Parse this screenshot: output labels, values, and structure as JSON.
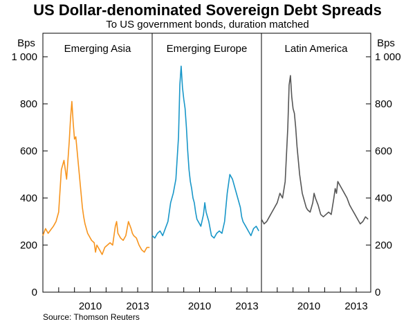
{
  "chart_data": {
    "type": "line",
    "title": "US Dollar-denominated Sovereign Debt Spreads",
    "subtitle": "To US government bonds, duration matched",
    "ylabel_left": "Bps",
    "ylabel_right": "Bps",
    "ylim": [
      0,
      1100
    ],
    "y_ticks": [
      "0",
      "200",
      "400",
      "600",
      "800",
      "1 000"
    ],
    "x_tick_labels": [
      "2010",
      "2013"
    ],
    "grid": false,
    "source": "Source: Thomson Reuters",
    "panels": [
      {
        "title": "Emerging Asia",
        "color": "#f7941d",
        "x_range": [
          "2007-01",
          "2013-12"
        ],
        "x_ticks": [
          "2008",
          "2009",
          "2010",
          "2011",
          "2012",
          "2013"
        ],
        "x_tick_labels": [
          "",
          "",
          "2010",
          "",
          "",
          "2013"
        ],
        "series": {
          "x": [
            "2007-01",
            "2007-03",
            "2007-05",
            "2007-07",
            "2007-09",
            "2007-11",
            "2008-01",
            "2008-03",
            "2008-05",
            "2008-07",
            "2008-09",
            "2008-10",
            "2008-11",
            "2008-12",
            "2009-01",
            "2009-02",
            "2009-03",
            "2009-04",
            "2009-05",
            "2009-06",
            "2009-07",
            "2009-08",
            "2009-09",
            "2009-10",
            "2009-11",
            "2009-12",
            "2010-02",
            "2010-04",
            "2010-05",
            "2010-06",
            "2010-08",
            "2010-10",
            "2010-12",
            "2011-02",
            "2011-04",
            "2011-06",
            "2011-08",
            "2011-09",
            "2011-10",
            "2011-11",
            "2011-12",
            "2012-02",
            "2012-04",
            "2012-06",
            "2012-08",
            "2012-09",
            "2012-10",
            "2012-12",
            "2013-02",
            "2013-04",
            "2013-06",
            "2013-08",
            "2013-10"
          ],
          "values": [
            240,
            270,
            250,
            265,
            280,
            300,
            340,
            520,
            560,
            480,
            640,
            740,
            810,
            720,
            650,
            660,
            600,
            540,
            480,
            420,
            360,
            320,
            290,
            270,
            250,
            240,
            220,
            210,
            170,
            200,
            180,
            160,
            190,
            200,
            210,
            200,
            280,
            300,
            250,
            240,
            230,
            220,
            240,
            300,
            270,
            250,
            240,
            230,
            200,
            180,
            170,
            190,
            190
          ]
        }
      },
      {
        "title": "Emerging Europe",
        "color": "#1796c8",
        "x_range": [
          "2007-01",
          "2013-12"
        ],
        "x_ticks": [
          "2008",
          "2009",
          "2010",
          "2011",
          "2012",
          "2013"
        ],
        "x_tick_labels": [
          "",
          "",
          "2010",
          "",
          "",
          "2013"
        ],
        "series": {
          "x": [
            "2007-01",
            "2007-03",
            "2007-05",
            "2007-07",
            "2007-09",
            "2007-11",
            "2008-01",
            "2008-03",
            "2008-05",
            "2008-07",
            "2008-09",
            "2008-10",
            "2008-11",
            "2008-12",
            "2009-01",
            "2009-02",
            "2009-03",
            "2009-04",
            "2009-05",
            "2009-06",
            "2009-07",
            "2009-08",
            "2009-09",
            "2009-10",
            "2009-11",
            "2009-12",
            "2010-02",
            "2010-04",
            "2010-05",
            "2010-06",
            "2010-08",
            "2010-10",
            "2010-12",
            "2011-02",
            "2011-04",
            "2011-06",
            "2011-08",
            "2011-09",
            "2011-10",
            "2011-11",
            "2011-12",
            "2012-02",
            "2012-04",
            "2012-06",
            "2012-08",
            "2012-09",
            "2012-10",
            "2012-12",
            "2013-02",
            "2013-04",
            "2013-06",
            "2013-08",
            "2013-10"
          ],
          "values": [
            240,
            230,
            250,
            260,
            240,
            270,
            300,
            380,
            420,
            480,
            660,
            880,
            960,
            870,
            820,
            780,
            700,
            600,
            520,
            470,
            440,
            400,
            380,
            340,
            310,
            300,
            280,
            330,
            380,
            340,
            300,
            240,
            230,
            250,
            260,
            250,
            300,
            360,
            420,
            460,
            500,
            480,
            440,
            400,
            360,
            320,
            300,
            280,
            260,
            240,
            270,
            280,
            260
          ]
        }
      },
      {
        "title": "Latin America",
        "color": "#555555",
        "x_range": [
          "2007-01",
          "2013-12"
        ],
        "x_ticks": [
          "2008",
          "2009",
          "2010",
          "2011",
          "2012",
          "2013"
        ],
        "x_tick_labels": [
          "",
          "",
          "2010",
          "",
          "",
          "2013"
        ],
        "series": {
          "x": [
            "2007-01",
            "2007-03",
            "2007-05",
            "2007-07",
            "2007-09",
            "2007-11",
            "2008-01",
            "2008-03",
            "2008-05",
            "2008-07",
            "2008-09",
            "2008-10",
            "2008-11",
            "2008-12",
            "2009-01",
            "2009-02",
            "2009-03",
            "2009-04",
            "2009-05",
            "2009-06",
            "2009-07",
            "2009-08",
            "2009-09",
            "2009-10",
            "2009-11",
            "2009-12",
            "2010-02",
            "2010-04",
            "2010-05",
            "2010-06",
            "2010-08",
            "2010-10",
            "2010-12",
            "2011-02",
            "2011-04",
            "2011-06",
            "2011-08",
            "2011-09",
            "2011-10",
            "2011-11",
            "2011-12",
            "2012-02",
            "2012-04",
            "2012-06",
            "2012-08",
            "2012-09",
            "2012-10",
            "2012-12",
            "2013-02",
            "2013-04",
            "2013-06",
            "2013-08",
            "2013-10"
          ],
          "values": [
            310,
            290,
            300,
            320,
            340,
            360,
            380,
            420,
            400,
            470,
            700,
            880,
            920,
            830,
            780,
            760,
            700,
            620,
            560,
            500,
            460,
            420,
            400,
            380,
            360,
            350,
            340,
            380,
            420,
            400,
            370,
            330,
            320,
            330,
            340,
            330,
            400,
            440,
            420,
            470,
            460,
            440,
            420,
            400,
            370,
            360,
            350,
            330,
            310,
            290,
            300,
            320,
            310
          ]
        }
      }
    ]
  }
}
